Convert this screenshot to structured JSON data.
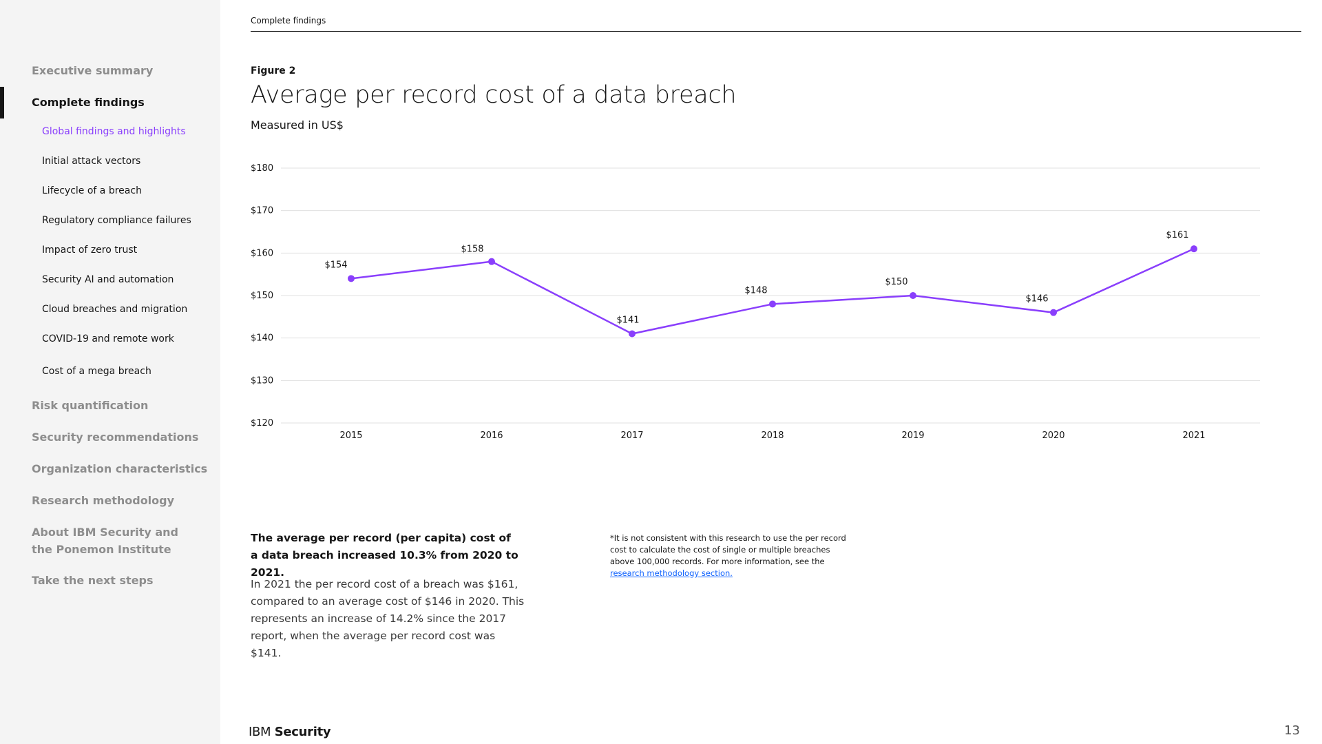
{
  "sidebar": {
    "items": [
      {
        "label": "Executive summary",
        "active": false
      },
      {
        "label": "Complete findings",
        "active": true
      },
      {
        "label": "Risk quantification",
        "active": false
      },
      {
        "label": "Security recommendations",
        "active": false
      },
      {
        "label": "Organization characteristics",
        "active": false
      },
      {
        "label": "Research methodology",
        "active": false
      },
      {
        "label": "About IBM Security and the Ponemon Institute",
        "active": false
      },
      {
        "label": "Take the next steps",
        "active": false
      }
    ],
    "subitems": [
      {
        "label": "Global findings and highlights",
        "current": true
      },
      {
        "label": "Initial attack vectors"
      },
      {
        "label": "Lifecycle of a breach"
      },
      {
        "label": "Regulatory compliance failures"
      },
      {
        "label": "Impact of zero trust"
      },
      {
        "label": "Security AI and automation"
      },
      {
        "label": "Cloud breaches and migration"
      },
      {
        "label": "COVID-19 and remote work"
      },
      {
        "label": "Cost of a mega breach"
      }
    ]
  },
  "header": {
    "section": "Complete findings"
  },
  "figure": {
    "label": "Figure 2",
    "title": "Average per record cost of a data breach",
    "subtitle": "Measured in US$"
  },
  "chart_data": {
    "type": "line",
    "x": [
      "2015",
      "2016",
      "2017",
      "2018",
      "2019",
      "2020",
      "2021"
    ],
    "series": [
      {
        "values": [
          154,
          158,
          141,
          148,
          150,
          146,
          161
        ]
      }
    ],
    "data_labels": [
      "$154",
      "$158",
      "$141",
      "$148",
      "$150",
      "$146",
      "$161"
    ],
    "ylim": [
      120,
      180
    ],
    "yticks": [
      120,
      130,
      140,
      150,
      160,
      170,
      180
    ],
    "ytick_labels": [
      "$120",
      "$130",
      "$140",
      "$150",
      "$160",
      "$170",
      "$180"
    ],
    "grid": true,
    "color": "#8a3ffc"
  },
  "text": {
    "lead": "The average per record (per capita) cost of a data breach increased 10.3% from 2020 to 2021.",
    "body": "In 2021 the per record cost of a breach was $161, compared to an average cost of $146 in 2020. This represents an increase of 14.2% since the 2017 report, when the average per record cost was $141.",
    "footnote": "*It is not consistent with this research to use the per record cost to calculate the cost of single or multiple breaches above 100,000 records. For more information, see the",
    "footnote_link": "research methodology section."
  },
  "footer": {
    "brand_ibm": "IBM",
    "brand_security": "Security",
    "page": "13"
  }
}
